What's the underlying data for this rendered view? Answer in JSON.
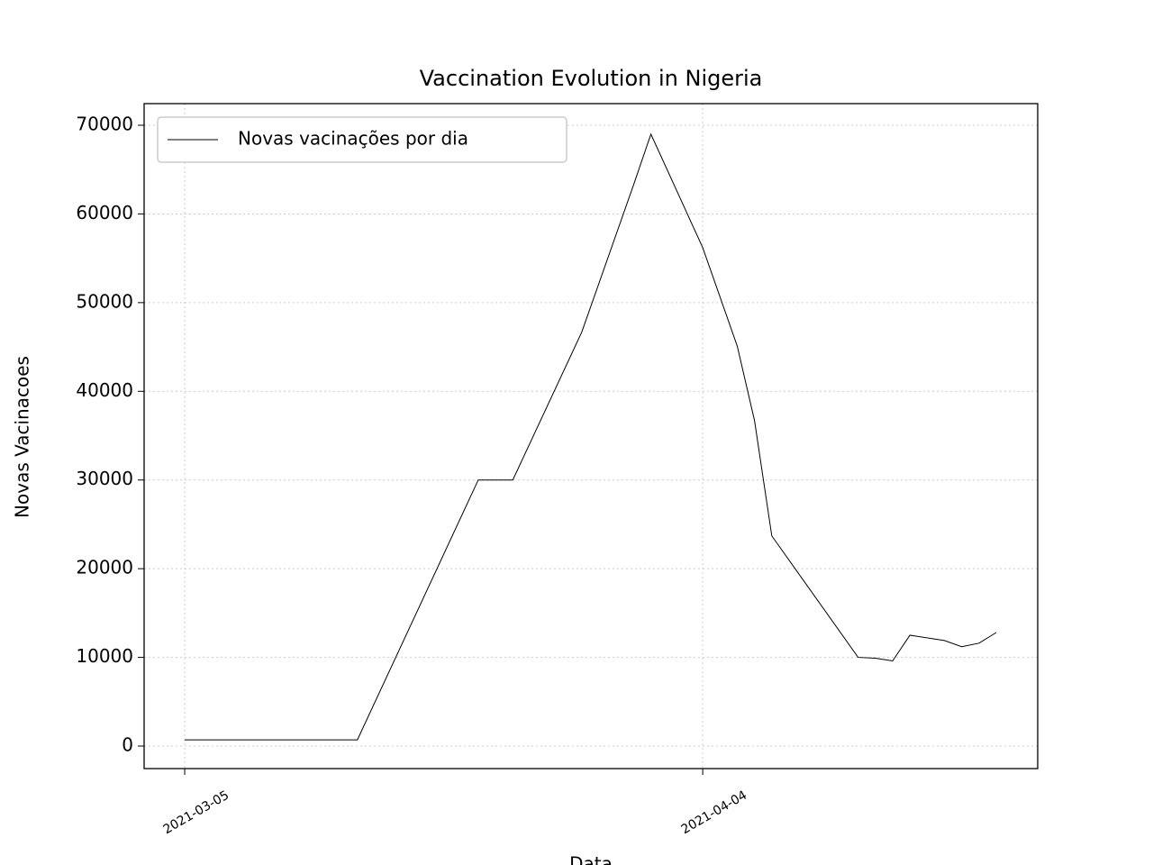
{
  "chart_data": {
    "type": "line",
    "title": "Vaccination Evolution in Nigeria",
    "xlabel": "Data",
    "ylabel": "Novas Vacinacoes",
    "x": [
      "2021-03-05",
      "2021-03-15",
      "2021-03-22",
      "2021-03-24",
      "2021-03-28",
      "2021-03-31",
      "2021-04-01",
      "2021-04-04",
      "2021-04-06",
      "2021-04-07",
      "2021-04-08",
      "2021-04-13",
      "2021-04-14",
      "2021-04-15",
      "2021-04-16",
      "2021-04-18",
      "2021-04-19",
      "2021-04-20",
      "2021-04-21"
    ],
    "series": [
      {
        "name": "Novas vacinações por dia",
        "color": "#000000",
        "values": [
          700,
          700,
          30000,
          30000,
          46700,
          63300,
          69000,
          56200,
          45100,
          36700,
          23700,
          10000,
          9900,
          9600,
          12500,
          11900,
          11200,
          11600,
          12800
        ]
      }
    ],
    "xlim": [
      "2021-03-02T15:36",
      "2021-04-23T09:36"
    ],
    "xticks": [
      "2021-03-05",
      "2021-04-04"
    ],
    "ylim": [
      -2540,
      72440
    ],
    "yticks": [
      0,
      10000,
      20000,
      30000,
      40000,
      50000,
      60000,
      70000
    ],
    "grid": true,
    "legend": "upper left"
  }
}
